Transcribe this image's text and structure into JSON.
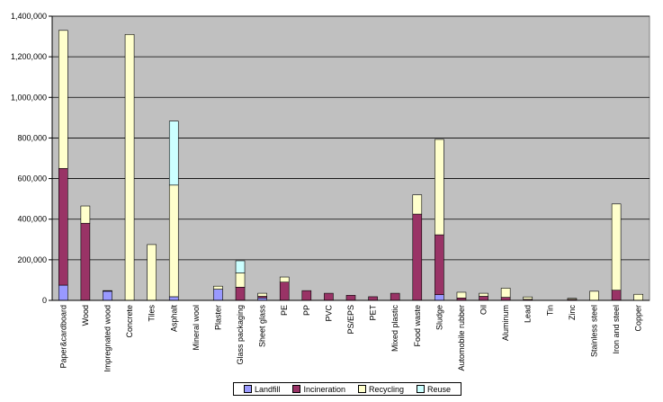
{
  "chart_data": {
    "type": "bar",
    "stacked": true,
    "title": "",
    "xlabel": "",
    "ylabel": "",
    "ylim": [
      0,
      1400000
    ],
    "y_ticks": [
      "0",
      "200,000",
      "400,000",
      "600,000",
      "800,000",
      "1,000,000",
      "1,200,000",
      "1,400,000"
    ],
    "y_tick_values": [
      0,
      200000,
      400000,
      600000,
      800000,
      1000000,
      1200000,
      1400000
    ],
    "grid": true,
    "plot_background": "#c0c0c0",
    "legend_position": "bottom",
    "categories": [
      "Paper&cardboard",
      "Wood",
      "Impregnated wood",
      "Concrete",
      "Tiles",
      "Asphalt",
      "Mineral wool",
      "Plaster",
      "Glass packaging",
      "Sheet glass",
      "PE",
      "PP",
      "PVC",
      "PS/EPS",
      "PET",
      "Mixed plastic",
      "Food waste",
      "Sludge",
      "Automobile rubber",
      "Oil",
      "Aluminum",
      "Lead",
      "Tin",
      "Zinc",
      "Stainless steel",
      "Iron and steel",
      "Copper"
    ],
    "series": [
      {
        "name": "Landfill",
        "color": "#9999ff",
        "values": [
          75000,
          0,
          45000,
          0,
          0,
          18000,
          0,
          55000,
          0,
          12000,
          0,
          0,
          0,
          0,
          0,
          0,
          0,
          28000,
          0,
          0,
          0,
          0,
          0,
          0,
          0,
          0,
          0
        ]
      },
      {
        "name": "Incineration",
        "color": "#993366",
        "values": [
          575000,
          380000,
          3000,
          0,
          0,
          0,
          0,
          0,
          65000,
          8000,
          90000,
          48000,
          35000,
          25000,
          18000,
          35000,
          425000,
          295000,
          12000,
          20000,
          15000,
          5000,
          0,
          5000,
          0,
          50000,
          0
        ]
      },
      {
        "name": "Recycling",
        "color": "#ffffcc",
        "values": [
          680000,
          85000,
          0,
          1310000,
          275000,
          550000,
          0,
          15000,
          70000,
          15000,
          25000,
          0,
          0,
          0,
          0,
          0,
          95000,
          470000,
          28000,
          15000,
          45000,
          12000,
          0,
          5000,
          45000,
          425000,
          30000
        ]
      },
      {
        "name": "Reuse",
        "color": "#ccffff",
        "values": [
          0,
          0,
          0,
          0,
          0,
          315000,
          0,
          0,
          60000,
          0,
          0,
          0,
          0,
          0,
          0,
          0,
          0,
          0,
          0,
          0,
          0,
          0,
          0,
          0,
          0,
          0,
          0
        ]
      }
    ]
  }
}
